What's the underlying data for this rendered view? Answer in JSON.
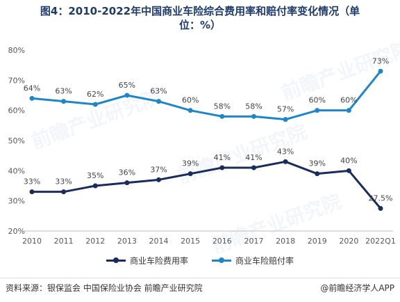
{
  "title_line1": "图4：2010-2022年中国商业车险综合费用率和赔付率变化情况（单",
  "title_line2": "位：%）",
  "source": "资料来源：银保监会 中国保险业协会 前瞻产业研究院",
  "brand": "@前瞻经济学人APP",
  "watermark": "前瞻产业研究院",
  "colors": {
    "expense": "#1a2c5b",
    "payout": "#1f85c9"
  },
  "chart_data": {
    "type": "line",
    "title": "图4：2010-2022年中国商业车险综合费用率和赔付率变化情况（单位：%）",
    "categories": [
      "2010",
      "2011",
      "2012",
      "2013",
      "2014",
      "2015",
      "2016",
      "2017",
      "2018",
      "2019",
      "2020",
      "2022Q1"
    ],
    "ylim": [
      20,
      80
    ],
    "yticks": [
      "20%",
      "30%",
      "40%",
      "50%",
      "60%",
      "70%",
      "80%"
    ],
    "grid": false,
    "legend_position": "bottom",
    "series": [
      {
        "name": "商业车险费用率",
        "values": [
          33,
          33,
          35,
          36,
          37,
          39,
          41,
          41,
          43,
          39,
          40,
          27.5
        ],
        "labels": [
          "33%",
          "33%",
          "35%",
          "36%",
          "37%",
          "39%",
          "41%",
          "41%",
          "43%",
          "39%",
          "40%",
          "27.5%"
        ]
      },
      {
        "name": "商业车险赔付率",
        "values": [
          64,
          63,
          62,
          65,
          63,
          60,
          58,
          58,
          57,
          60,
          60,
          73
        ],
        "labels": [
          "64%",
          "63%",
          "62%",
          "65%",
          "63%",
          "60%",
          "58%",
          "58%",
          "57%",
          "60%",
          "60%",
          "73%"
        ]
      }
    ]
  }
}
